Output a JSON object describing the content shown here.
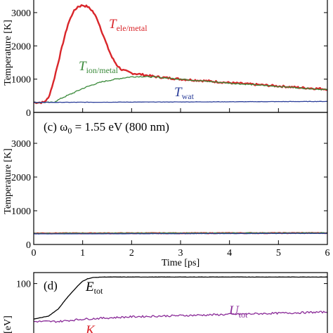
{
  "colors": {
    "red": "#d9262b",
    "green": "#3a8a3a",
    "blue": "#2c3f9a",
    "purple": "#8a2b98",
    "black": "#000000"
  },
  "chart_data": [
    {
      "type": "line",
      "ylabel": "Temperature [K]",
      "xlim": [
        0,
        6
      ],
      "ylim": [
        0,
        3500
      ],
      "yticks": [
        0,
        1000,
        2000,
        3000
      ],
      "ytick_labels": [
        "0",
        "1000",
        "2000",
        "3000"
      ],
      "series": [
        {
          "label_main": "T",
          "label_sub": "ele/metal",
          "color_key": "red",
          "x": [
            0,
            0.2,
            0.3,
            0.4,
            0.5,
            0.6,
            0.7,
            0.8,
            0.9,
            1.0,
            1.1,
            1.2,
            1.3,
            1.4,
            1.5,
            1.6,
            1.7,
            1.8,
            2.0,
            2.2,
            2.5,
            3.0,
            3.5,
            4.0,
            4.5,
            5.0,
            5.5,
            6.0
          ],
          "y": [
            300,
            300,
            430,
            900,
            1500,
            2100,
            2650,
            3000,
            3180,
            3220,
            3180,
            3050,
            2800,
            2400,
            2000,
            1650,
            1420,
            1280,
            1180,
            1140,
            1070,
            1000,
            950,
            890,
            840,
            790,
            740,
            700
          ]
        },
        {
          "label_main": "T",
          "label_sub": "ion/metal",
          "color_key": "green",
          "x": [
            0,
            0.4,
            0.6,
            0.8,
            1.0,
            1.2,
            1.4,
            1.6,
            1.8,
            2.0,
            2.2,
            2.5,
            3.0,
            3.5,
            4.0,
            4.5,
            5.0,
            5.5,
            6.0
          ],
          "y": [
            300,
            300,
            450,
            580,
            720,
            830,
            920,
            980,
            1030,
            1070,
            1080,
            1060,
            1000,
            940,
            880,
            830,
            780,
            730,
            680
          ]
        },
        {
          "label_main": "T",
          "label_sub": "wat",
          "color_key": "blue",
          "x": [
            0,
            6
          ],
          "y": [
            300,
            330
          ]
        }
      ]
    },
    {
      "type": "line",
      "title": "(c) ω₀ = 1.55 eV (800 nm)",
      "title_parts": {
        "prefix": "(c) ω",
        "sub": "0",
        "suffix": " = 1.55 eV (800 nm)"
      },
      "ylabel": "Temperature [K]",
      "xlabel": "Time [ps]",
      "xlim": [
        0,
        6
      ],
      "ylim": [
        0,
        3800
      ],
      "xticks": [
        0,
        1,
        2,
        3,
        4,
        5,
        6
      ],
      "xtick_labels": [
        "0",
        "1",
        "2",
        "3",
        "4",
        "5",
        "6"
      ],
      "yticks": [
        0,
        1000,
        2000,
        3000
      ],
      "ytick_labels": [
        "0",
        "1000",
        "2000",
        "3000"
      ],
      "series": [
        {
          "color_key": "red",
          "x": [
            0,
            6
          ],
          "y": [
            330,
            340
          ]
        },
        {
          "color_key": "green",
          "x": [
            0,
            6
          ],
          "y": [
            330,
            345
          ]
        },
        {
          "color_key": "blue",
          "x": [
            0,
            6
          ],
          "y": [
            315,
            330
          ]
        }
      ]
    },
    {
      "type": "line",
      "title": "(d)",
      "ylabel": "[eV]",
      "xlim": [
        0,
        6
      ],
      "yticks": [
        100
      ],
      "ytick_labels": [
        "100"
      ],
      "series": [
        {
          "label_main": "E",
          "label_sub": "tot",
          "color_key": "black",
          "x": [
            0,
            0.3,
            0.5,
            0.7,
            0.9,
            1.0,
            1.1,
            1.2,
            1.4,
            6.0
          ],
          "y": [
            40,
            45,
            57,
            78,
            96,
            104,
            108,
            110,
            111,
            111
          ]
        },
        {
          "label_main": "U",
          "label_sub": "tot",
          "color_key": "purple",
          "x": [
            0,
            0.5,
            1.0,
            1.5,
            2.0,
            3.0,
            4.0,
            5.0,
            6.0
          ],
          "y": [
            36,
            36,
            40,
            42,
            44,
            46,
            48,
            50,
            52
          ]
        },
        {
          "label_main": "K",
          "label_sub": "",
          "color_key": "red",
          "x": [],
          "y": []
        }
      ]
    }
  ]
}
